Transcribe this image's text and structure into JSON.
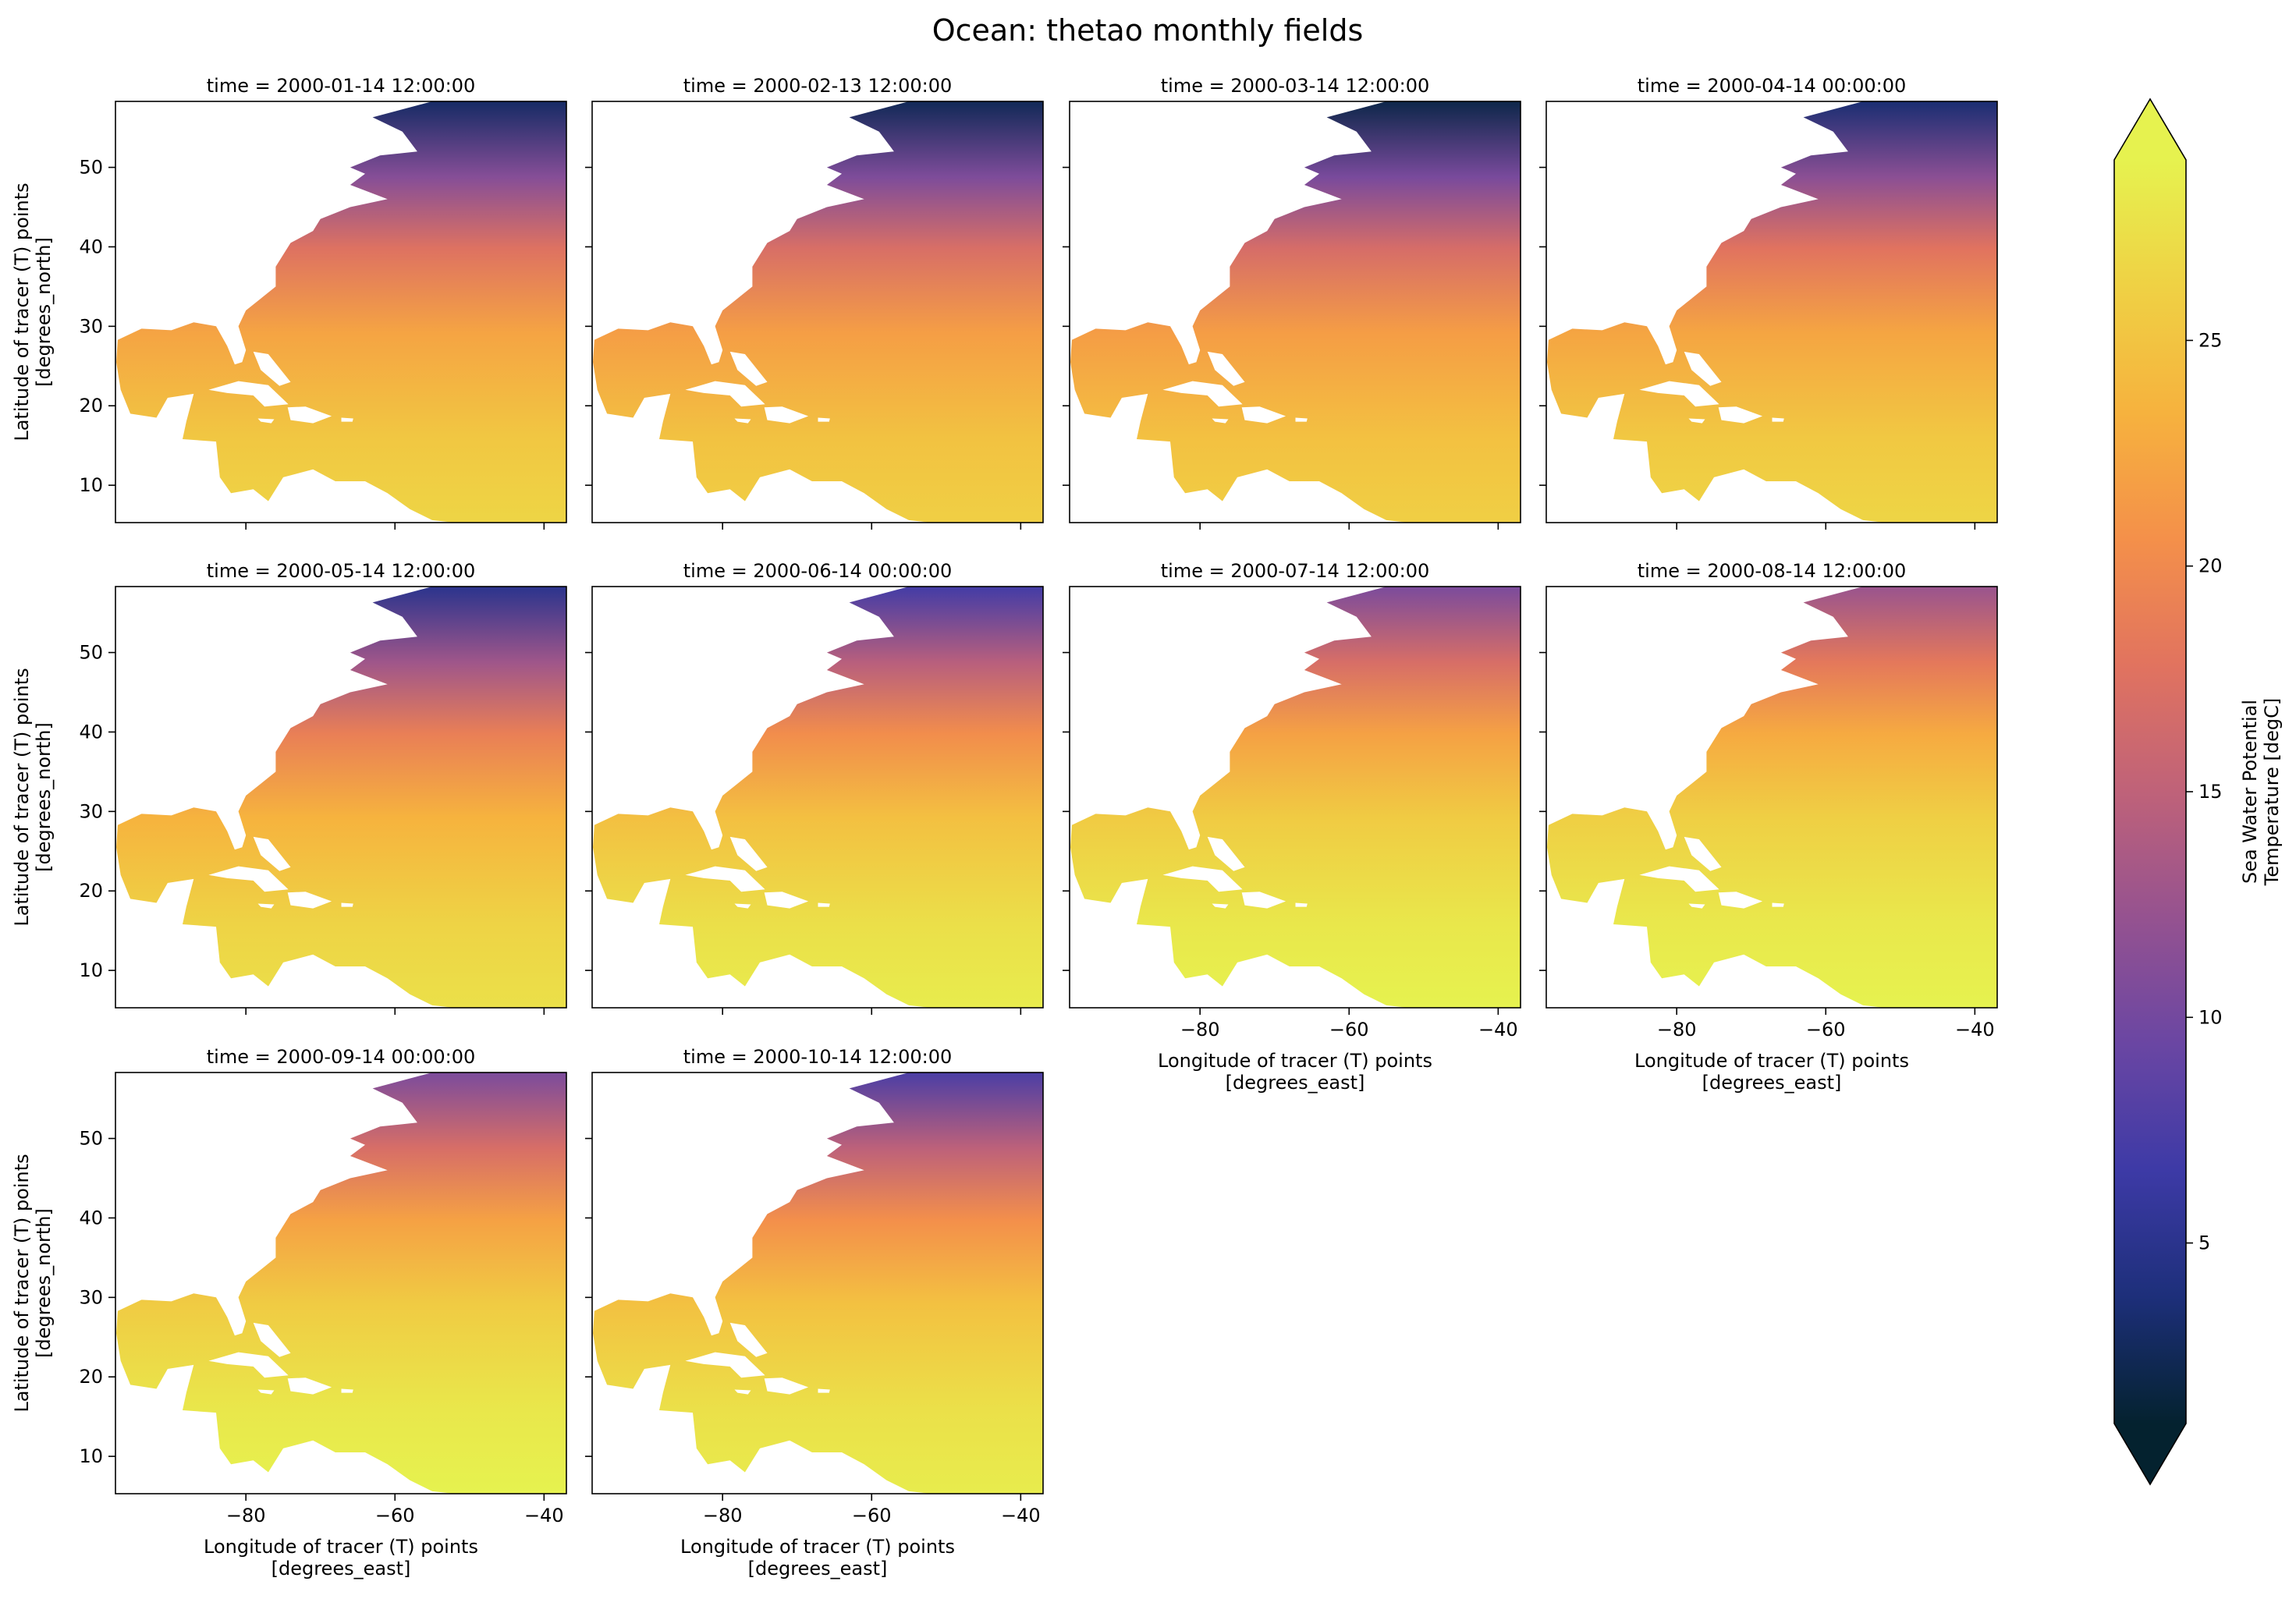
{
  "title": "Ocean: thetao monthly fields",
  "colors": {
    "colormap": [
      "#04222f",
      "#1d2f7a",
      "#3d3aa6",
      "#6a46a3",
      "#955290",
      "#bf6279",
      "#e1735f",
      "#f4904a",
      "#f6b23e",
      "#efd144",
      "#e6f24f"
    ],
    "land": "#ffffff"
  },
  "chart_data": {
    "type": "heatmap",
    "facet_rows": 3,
    "facet_cols": 4,
    "x_label_lines": [
      "Longitude of tracer (T) points",
      "[degrees_east]"
    ],
    "y_label_lines": [
      "Latitude of tracer (T) points",
      "[degrees_north]"
    ],
    "x_ticks": [
      -80,
      -60,
      -40
    ],
    "x_tick_labels": [
      "−80",
      "−60",
      "−40"
    ],
    "y_ticks": [
      10,
      20,
      30,
      40,
      50
    ],
    "y_tick_labels": [
      "10",
      "20",
      "30",
      "40",
      "50"
    ],
    "xlim": [
      -97.5,
      -37
    ],
    "ylim": [
      5.3,
      58.3
    ],
    "colorbar": {
      "label_lines": [
        "Sea Water Potential",
        "Temperature [degC]"
      ],
      "vmin": 1.0,
      "vmax": 29.0,
      "extend": "both",
      "ticks": [
        5,
        10,
        15,
        20,
        25
      ],
      "tick_labels": [
        "5",
        "10",
        "15",
        "20",
        "25"
      ]
    },
    "panels": [
      {
        "title": "time = 2000-01-14 12:00:00",
        "north_temp": 3.0,
        "south_temp": 26.5
      },
      {
        "title": "time = 2000-02-13 12:00:00",
        "north_temp": 2.5,
        "south_temp": 26.0
      },
      {
        "title": "time = 2000-03-14 12:00:00",
        "north_temp": 2.0,
        "south_temp": 26.0
      },
      {
        "title": "time = 2000-04-14 00:00:00",
        "north_temp": 3.5,
        "south_temp": 26.5
      },
      {
        "title": "time = 2000-05-14 12:00:00",
        "north_temp": 5.0,
        "south_temp": 27.5
      },
      {
        "title": "time = 2000-06-14 00:00:00",
        "north_temp": 7.0,
        "south_temp": 28.5
      },
      {
        "title": "time = 2000-07-14 12:00:00",
        "north_temp": 10.5,
        "south_temp": 29.0
      },
      {
        "title": "time = 2000-08-14 12:00:00",
        "north_temp": 12.5,
        "south_temp": 29.0
      },
      {
        "title": "time = 2000-09-14 00:00:00",
        "north_temp": 10.5,
        "south_temp": 29.0
      },
      {
        "title": "time = 2000-10-14 12:00:00",
        "north_temp": 7.5,
        "south_temp": 28.5
      }
    ]
  }
}
